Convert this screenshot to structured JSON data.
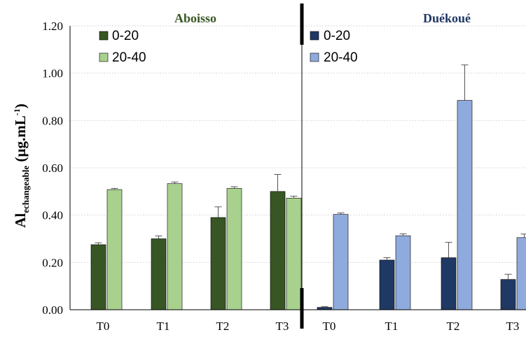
{
  "chart_data": {
    "type": "bar",
    "ylabel_main": "Al",
    "ylabel_sub": "echangeable",
    "ylabel_rest": " (µg.mL",
    "ylabel_sup": "-1",
    "ylabel_end": ")",
    "ylim": [
      0,
      1.2
    ],
    "yticks": [
      "0.00",
      "0.20",
      "0.40",
      "0.60",
      "0.80",
      "1.00",
      "1.20"
    ],
    "ytick_values": [
      0,
      0.2,
      0.4,
      0.6,
      0.8,
      1.0,
      1.2
    ],
    "grid": true,
    "panels": [
      {
        "title": "Aboisso",
        "title_color": "#375623",
        "categories": [
          "T0",
          "T1",
          "T2",
          "T3"
        ],
        "legend_placement": "top-left",
        "series": [
          {
            "name": "0-20",
            "color": "#375623",
            "values": [
              0.275,
              0.3,
              0.39,
              0.5
            ],
            "errors": [
              0.008,
              0.012,
              0.045,
              0.072
            ]
          },
          {
            "name": "20-40",
            "color": "#A9D18E",
            "values": [
              0.508,
              0.533,
              0.513,
              0.472
            ],
            "errors": [
              0.005,
              0.007,
              0.007,
              0.008
            ]
          }
        ]
      },
      {
        "title": "Duékoué",
        "title_color": "#203864",
        "categories": [
          "T0",
          "T1",
          "T2",
          "T3"
        ],
        "legend_placement": "top-left",
        "series": [
          {
            "name": "0-20",
            "color": "#203864",
            "values": [
              0.01,
              0.21,
              0.22,
              0.128
            ],
            "errors": [
              0.003,
              0.01,
              0.065,
              0.022
            ]
          },
          {
            "name": "20-40",
            "color": "#8FAADC",
            "values": [
              0.403,
              0.313,
              0.885,
              0.305
            ],
            "errors": [
              0.006,
              0.008,
              0.15,
              0.015
            ]
          }
        ]
      }
    ]
  }
}
